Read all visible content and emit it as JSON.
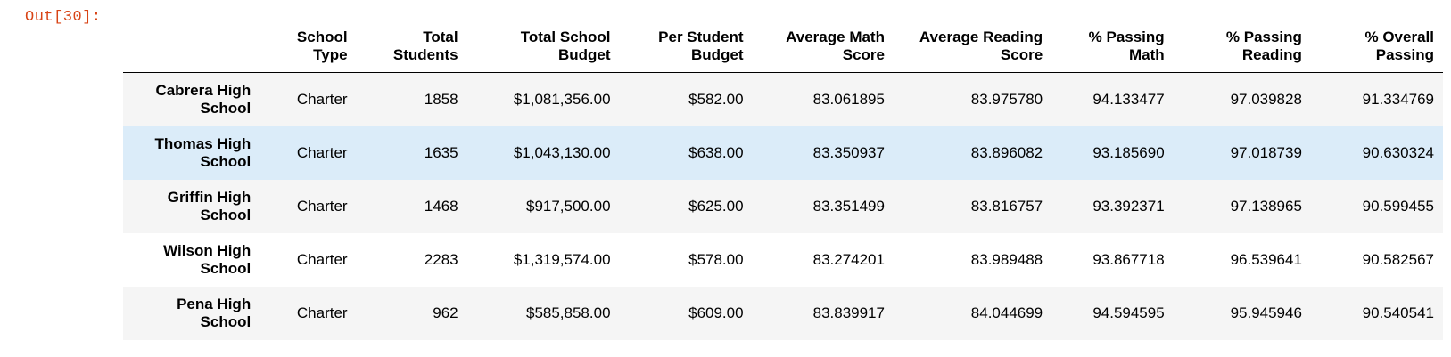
{
  "cell": {
    "prompt": "Out[30]:"
  },
  "table": {
    "columns": [
      {
        "line1": "",
        "line2": ""
      },
      {
        "line1": "School",
        "line2": "Type"
      },
      {
        "line1": "Total",
        "line2": "Students"
      },
      {
        "line1": "Total School",
        "line2": "Budget"
      },
      {
        "line1": "Per Student",
        "line2": "Budget"
      },
      {
        "line1": "Average Math",
        "line2": "Score"
      },
      {
        "line1": "Average Reading",
        "line2": "Score"
      },
      {
        "line1": "% Passing",
        "line2": "Math"
      },
      {
        "line1": "% Passing",
        "line2": "Reading"
      },
      {
        "line1": "% Overall",
        "line2": "Passing"
      }
    ],
    "rows": [
      {
        "index_line1": "Cabrera High",
        "index_line2": "School",
        "cells": [
          "Charter",
          "1858",
          "$1,081,356.00",
          "$582.00",
          "83.061895",
          "83.975780",
          "94.133477",
          "97.039828",
          "91.334769"
        ]
      },
      {
        "index_line1": "Thomas High",
        "index_line2": "School",
        "cells": [
          "Charter",
          "1635",
          "$1,043,130.00",
          "$638.00",
          "83.350937",
          "83.896082",
          "93.185690",
          "97.018739",
          "90.630324"
        ]
      },
      {
        "index_line1": "Griffin High",
        "index_line2": "School",
        "cells": [
          "Charter",
          "1468",
          "$917,500.00",
          "$625.00",
          "83.351499",
          "83.816757",
          "93.392371",
          "97.138965",
          "90.599455"
        ]
      },
      {
        "index_line1": "Wilson High",
        "index_line2": "School",
        "cells": [
          "Charter",
          "2283",
          "$1,319,574.00",
          "$578.00",
          "83.274201",
          "83.989488",
          "93.867718",
          "96.539641",
          "90.582567"
        ]
      },
      {
        "index_line1": "Pena High",
        "index_line2": "School",
        "cells": [
          "Charter",
          "962",
          "$585,858.00",
          "$609.00",
          "83.839917",
          "84.044699",
          "94.594595",
          "95.945946",
          "90.540541"
        ]
      }
    ],
    "hovered_row": 1
  },
  "colors": {
    "prompt": "#d84315",
    "row_stripe": "#f5f5f5",
    "row_hover": "#dbecf9"
  }
}
